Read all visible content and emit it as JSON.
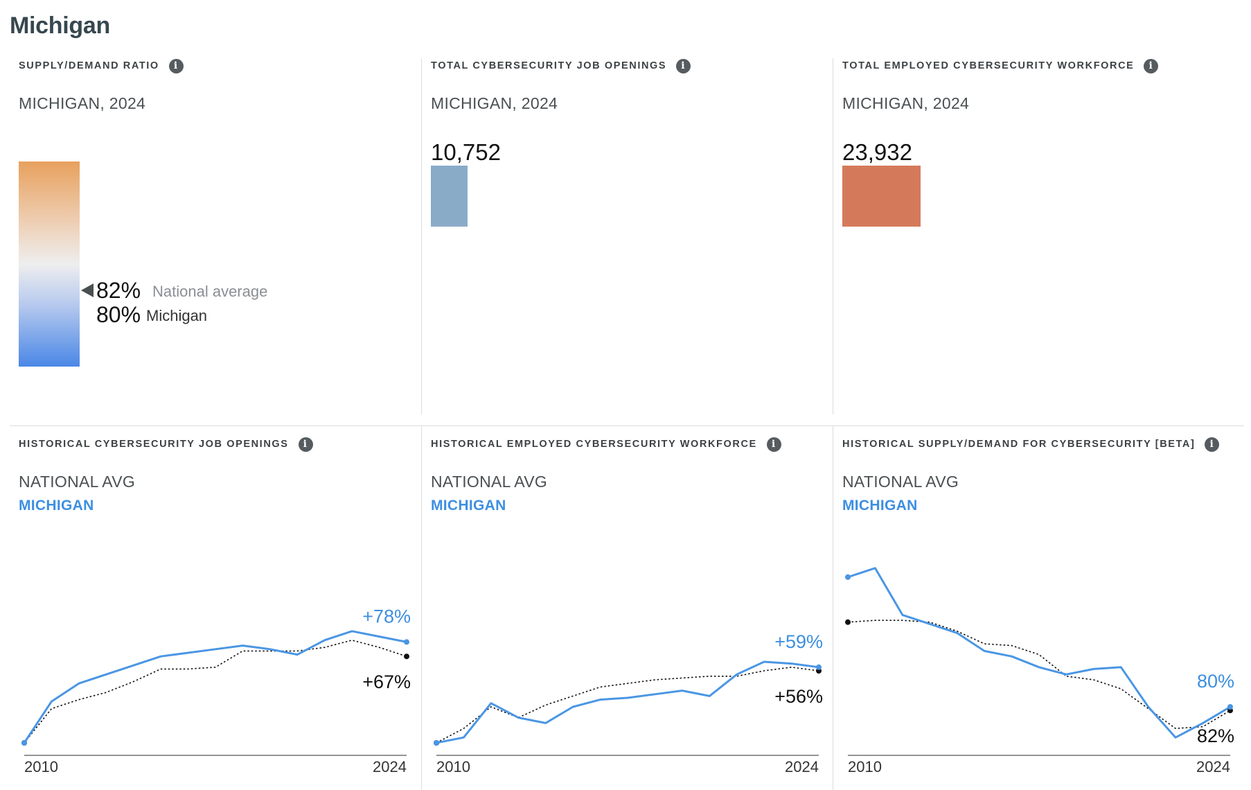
{
  "page": {
    "title": "Michigan"
  },
  "top_panels": {
    "ratio": {
      "title": "SUPPLY/DEMAND RATIO",
      "subtitle": "MICHIGAN, 2024",
      "national": {
        "value": "82%",
        "label": "National average"
      },
      "state": {
        "value": "80%",
        "label": "Michigan"
      }
    },
    "openings": {
      "title": "TOTAL CYBERSECURITY JOB OPENINGS",
      "subtitle": "MICHIGAN, 2024",
      "value": "10,752",
      "color": "#8aabc8"
    },
    "workforce": {
      "title": "TOTAL EMPLOYED CYBERSECURITY WORKFORCE",
      "subtitle": "MICHIGAN, 2024",
      "value": "23,932",
      "color": "#d47a5a"
    }
  },
  "bottom_panels": {
    "legend_national": "NATIONAL AVG",
    "legend_state": "MICHIGAN",
    "hist_openings": {
      "title": "HISTORICAL CYBERSECURITY JOB OPENINGS"
    },
    "hist_workforce": {
      "title": "HISTORICAL EMPLOYED CYBERSECURITY WORKFORCE"
    },
    "hist_supply": {
      "title": "HISTORICAL SUPPLY/DEMAND FOR CYBERSECURITY [BETA]"
    }
  },
  "colors": {
    "michigan": "#4a96e4",
    "national": "#111111",
    "axis": "#555555"
  },
  "chart_data": [
    {
      "type": "line",
      "title": "HISTORICAL CYBERSECURITY JOB OPENINGS",
      "x": [
        2010,
        2011,
        2012,
        2013,
        2014,
        2015,
        2016,
        2017,
        2018,
        2019,
        2020,
        2021,
        2022,
        2023,
        2024
      ],
      "xticks": [
        "2010",
        "2024"
      ],
      "ylim": [
        0,
        100
      ],
      "series": [
        {
          "name": "MICHIGAN",
          "values": [
            0,
            23,
            33,
            38,
            43,
            48,
            50,
            52,
            54,
            52,
            49,
            57,
            62,
            59,
            56
          ],
          "end_label": "+78%"
        },
        {
          "name": "NATIONAL AVG",
          "values": [
            0,
            19,
            24,
            28,
            34,
            41,
            41,
            42,
            51,
            51,
            51,
            53,
            57,
            53,
            48
          ],
          "end_label": "+67%"
        }
      ]
    },
    {
      "type": "line",
      "title": "HISTORICAL EMPLOYED CYBERSECURITY WORKFORCE",
      "x": [
        2010,
        2011,
        2012,
        2013,
        2014,
        2015,
        2016,
        2017,
        2018,
        2019,
        2020,
        2021,
        2022,
        2023,
        2024
      ],
      "xticks": [
        "2010",
        "2024"
      ],
      "ylim": [
        0,
        100
      ],
      "series": [
        {
          "name": "MICHIGAN",
          "values": [
            0,
            3,
            22,
            14,
            11,
            20,
            24,
            25,
            27,
            29,
            26,
            38,
            45,
            44,
            42
          ],
          "end_label": "+59%"
        },
        {
          "name": "NATIONAL AVG",
          "values": [
            0,
            8,
            20,
            14,
            21,
            26,
            31,
            33,
            35,
            36,
            37,
            37,
            40,
            42,
            40
          ],
          "end_label": "+56%"
        }
      ]
    },
    {
      "type": "line",
      "title": "HISTORICAL SUPPLY/DEMAND FOR CYBERSECURITY [BETA]",
      "x": [
        2010,
        2011,
        2012,
        2013,
        2014,
        2015,
        2016,
        2017,
        2018,
        2019,
        2020,
        2021,
        2022,
        2023,
        2024
      ],
      "xticks": [
        "2010",
        "2024"
      ],
      "ylim": [
        0,
        100
      ],
      "series": [
        {
          "name": "MICHIGAN",
          "values": [
            92,
            97,
            71,
            66,
            61,
            51,
            48,
            42,
            38,
            41,
            42,
            20,
            3,
            11,
            20
          ],
          "end_label": "80%"
        },
        {
          "name": "NATIONAL AVG",
          "values": [
            67,
            68,
            68,
            67,
            62,
            55,
            54,
            49,
            37,
            35,
            30,
            19,
            8,
            9,
            18
          ],
          "end_label": "82%"
        }
      ]
    }
  ]
}
